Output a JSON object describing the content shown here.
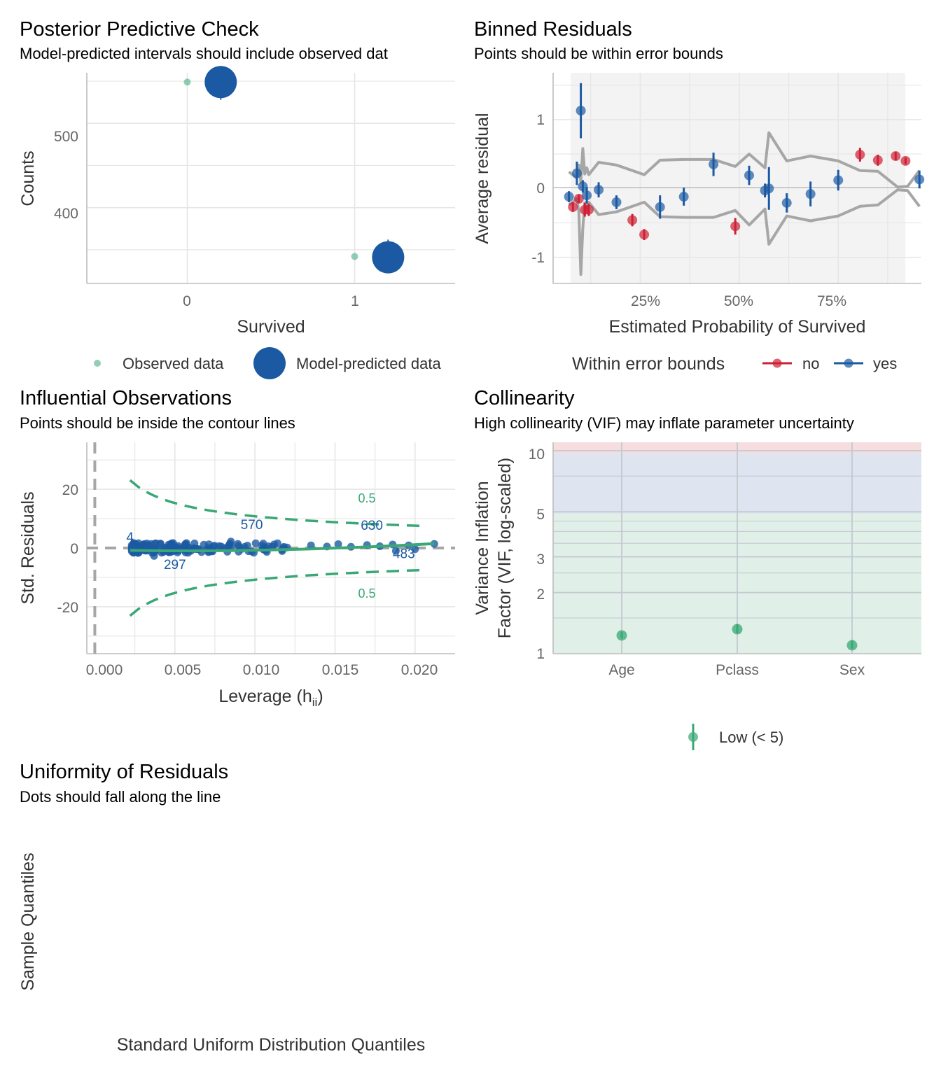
{
  "colors": {
    "green": "#3aa876",
    "blue": "#1b5aa3",
    "red": "#cf1f34",
    "gray": "#a6a6a6",
    "zone_low": "#e0f0e8",
    "zone_mod": "#dfe5f0",
    "zone_high": "#f6dde0"
  },
  "chart_data": [
    {
      "id": "ppc",
      "type": "scatter",
      "title": "Posterior Predictive Check",
      "subtitle": "Model-predicted intervals should include observed dat",
      "xlabel": "Survived",
      "ylabel": "Counts",
      "xlim": [
        -0.6,
        1.6
      ],
      "ylim": [
        310,
        560
      ],
      "xticks": [
        "0",
        "1"
      ],
      "yticks": [
        "400",
        "500"
      ],
      "series": [
        {
          "name": "Observed data",
          "points": [
            {
              "x": 0,
              "y": 549
            },
            {
              "x": 1,
              "y": 342
            }
          ]
        },
        {
          "name": "Model-predicted data",
          "points": [
            {
              "x": 0.2,
              "y": 549,
              "lo": 528,
              "hi": 549
            },
            {
              "x": 1.2,
              "y": 341,
              "lo": 330,
              "hi": 362
            }
          ]
        }
      ],
      "legend": [
        "Observed data",
        "Model-predicted data"
      ]
    },
    {
      "id": "binned",
      "type": "scatter",
      "title": "Binned Residuals",
      "subtitle": "Points should be within error bounds",
      "xlabel": "Estimated Probability of Survived",
      "ylabel": "Average residual",
      "xlim": [
        0.03,
        0.96
      ],
      "ylim": [
        -1.38,
        1.68
      ],
      "xticks": [
        "25%",
        "50%",
        "75%"
      ],
      "yticks": [
        "-1",
        "0",
        "1"
      ],
      "legend_title": "Within error bounds",
      "legend": [
        "no",
        "yes"
      ],
      "points": [
        {
          "x": 0.07,
          "y": -0.12,
          "lo": -0.2,
          "hi": -0.04,
          "in": "yes"
        },
        {
          "x": 0.08,
          "y": -0.27,
          "lo": -0.34,
          "hi": -0.2,
          "in": "no"
        },
        {
          "x": 0.09,
          "y": 0.22,
          "lo": 0.05,
          "hi": 0.39,
          "in": "yes"
        },
        {
          "x": 0.095,
          "y": -0.15,
          "lo": -0.21,
          "hi": -0.09,
          "in": "no"
        },
        {
          "x": 0.1,
          "y": 1.13,
          "lo": 0.73,
          "hi": 1.53,
          "in": "yes"
        },
        {
          "x": 0.105,
          "y": 0.03,
          "lo": -0.06,
          "hi": 0.12,
          "in": "yes"
        },
        {
          "x": 0.11,
          "y": -0.31,
          "lo": -0.41,
          "hi": -0.21,
          "in": "no"
        },
        {
          "x": 0.115,
          "y": -0.1,
          "lo": -0.22,
          "hi": 0.02,
          "in": "yes"
        },
        {
          "x": 0.12,
          "y": -0.31,
          "lo": -0.4,
          "hi": -0.22,
          "in": "no"
        },
        {
          "x": 0.145,
          "y": -0.02,
          "lo": -0.13,
          "hi": 0.09,
          "in": "yes"
        },
        {
          "x": 0.19,
          "y": -0.2,
          "lo": -0.3,
          "hi": -0.1,
          "in": "yes"
        },
        {
          "x": 0.23,
          "y": -0.46,
          "lo": -0.55,
          "hi": -0.37,
          "in": "no"
        },
        {
          "x": 0.26,
          "y": -0.67,
          "lo": -0.75,
          "hi": -0.59,
          "in": "no"
        },
        {
          "x": 0.3,
          "y": -0.27,
          "lo": -0.44,
          "hi": -0.1,
          "in": "yes"
        },
        {
          "x": 0.36,
          "y": -0.12,
          "lo": -0.25,
          "hi": 0.01,
          "in": "yes"
        },
        {
          "x": 0.435,
          "y": 0.35,
          "lo": 0.18,
          "hi": 0.52,
          "in": "yes"
        },
        {
          "x": 0.49,
          "y": -0.55,
          "lo": -0.67,
          "hi": -0.43,
          "in": "no"
        },
        {
          "x": 0.525,
          "y": 0.19,
          "lo": 0.05,
          "hi": 0.33,
          "in": "yes"
        },
        {
          "x": 0.565,
          "y": -0.03,
          "lo": -0.13,
          "hi": 0.07,
          "in": "yes"
        },
        {
          "x": 0.575,
          "y": 0.0,
          "lo": -0.31,
          "hi": 0.31,
          "in": "yes"
        },
        {
          "x": 0.62,
          "y": -0.21,
          "lo": -0.35,
          "hi": -0.07,
          "in": "yes"
        },
        {
          "x": 0.68,
          "y": -0.08,
          "lo": -0.26,
          "hi": 0.1,
          "in": "yes"
        },
        {
          "x": 0.75,
          "y": 0.12,
          "lo": -0.03,
          "hi": 0.27,
          "in": "yes"
        },
        {
          "x": 0.805,
          "y": 0.49,
          "lo": 0.39,
          "hi": 0.59,
          "in": "no"
        },
        {
          "x": 0.85,
          "y": 0.41,
          "lo": 0.33,
          "hi": 0.49,
          "in": "no"
        },
        {
          "x": 0.895,
          "y": 0.47,
          "lo": 0.41,
          "hi": 0.53,
          "in": "no"
        },
        {
          "x": 0.92,
          "y": 0.4,
          "lo": 0.35,
          "hi": 0.45,
          "in": "no"
        },
        {
          "x": 0.955,
          "y": 0.13,
          "lo": 0.0,
          "hi": 0.26,
          "in": "yes"
        }
      ],
      "bounds_upper": [
        [
          0.07,
          0.24
        ],
        [
          0.09,
          0.15
        ],
        [
          0.095,
          0.34
        ],
        [
          0.1,
          0.09
        ],
        [
          0.105,
          0.58
        ],
        [
          0.11,
          0.21
        ],
        [
          0.115,
          0.3
        ],
        [
          0.12,
          0.2
        ],
        [
          0.145,
          0.38
        ],
        [
          0.19,
          0.34
        ],
        [
          0.26,
          0.2
        ],
        [
          0.3,
          0.41
        ],
        [
          0.36,
          0.42
        ],
        [
          0.435,
          0.42
        ],
        [
          0.49,
          0.32
        ],
        [
          0.525,
          0.5
        ],
        [
          0.565,
          0.3
        ],
        [
          0.575,
          0.81
        ],
        [
          0.62,
          0.4
        ],
        [
          0.68,
          0.47
        ],
        [
          0.75,
          0.4
        ],
        [
          0.805,
          0.26
        ],
        [
          0.85,
          0.25
        ],
        [
          0.9,
          0.02
        ],
        [
          0.925,
          0.03
        ],
        [
          0.955,
          0.26
        ]
      ],
      "bounds_lower": [
        [
          0.07,
          -0.24
        ],
        [
          0.09,
          -0.15
        ],
        [
          0.095,
          -0.34
        ],
        [
          0.1,
          -1.25
        ],
        [
          0.105,
          -0.58
        ],
        [
          0.11,
          -0.21
        ],
        [
          0.115,
          -0.3
        ],
        [
          0.12,
          -0.2
        ],
        [
          0.145,
          -0.38
        ],
        [
          0.19,
          -0.34
        ],
        [
          0.26,
          -0.2
        ],
        [
          0.3,
          -0.41
        ],
        [
          0.36,
          -0.42
        ],
        [
          0.435,
          -0.42
        ],
        [
          0.49,
          -0.32
        ],
        [
          0.525,
          -0.53
        ],
        [
          0.565,
          -0.3
        ],
        [
          0.575,
          -0.81
        ],
        [
          0.62,
          -0.4
        ],
        [
          0.68,
          -0.47
        ],
        [
          0.75,
          -0.4
        ],
        [
          0.805,
          -0.26
        ],
        [
          0.85,
          -0.24
        ],
        [
          0.9,
          -0.02
        ],
        [
          0.925,
          -0.03
        ],
        [
          0.955,
          -0.26
        ]
      ]
    },
    {
      "id": "influence",
      "type": "scatter",
      "title": "Influential Observations",
      "subtitle": "Points should be inside the contour lines",
      "xlabel": "Leverage (h",
      "xlabel_sub": "ii",
      "xlabel_close": ")",
      "ylabel": "Std. Residuals",
      "xlim": [
        -0.0005,
        0.0225
      ],
      "ylim": [
        -36,
        36
      ],
      "xticks": [
        "0.000",
        "0.005",
        "0.010",
        "0.015",
        "0.020"
      ],
      "yticks": [
        "-20",
        "0",
        "20"
      ],
      "contour_label": "0.5",
      "labels": [
        {
          "text": "4",
          "x": 0.0022,
          "y": 2.2
        },
        {
          "text": "570",
          "x": 0.0098,
          "y": 6.4
        },
        {
          "text": "630",
          "x": 0.0173,
          "y": 6.2
        },
        {
          "text": "297",
          "x": 0.005,
          "y": -7.2
        },
        {
          "text": "483",
          "x": 0.0193,
          "y": -3.4
        }
      ]
    },
    {
      "id": "vif",
      "type": "scatter",
      "title": "Collinearity",
      "subtitle": "High collinearity (VIF) may inflate parameter uncertainty",
      "xlabel": "",
      "ylabel": "Variance Inflation",
      "ylabel2": "Factor (VIF, log-scaled)",
      "log_y": true,
      "ylim": [
        1,
        11
      ],
      "categories": [
        "Age",
        "Pclass",
        "Sex"
      ],
      "yticks": [
        "1",
        "2",
        "3",
        "5",
        "10"
      ],
      "values": [
        1.23,
        1.32,
        1.1
      ],
      "intervals": [
        [
          1.19,
          1.28
        ],
        [
          1.26,
          1.4
        ],
        [
          1.06,
          1.16
        ]
      ],
      "legend": [
        "Low (< 5)"
      ]
    },
    {
      "id": "uniform",
      "type": "scatter",
      "title": "Uniformity of Residuals",
      "subtitle": "Dots should fall along the line",
      "xlabel": "Standard Uniform Distribution Quantiles",
      "ylabel": "Sample Quantiles"
    }
  ]
}
